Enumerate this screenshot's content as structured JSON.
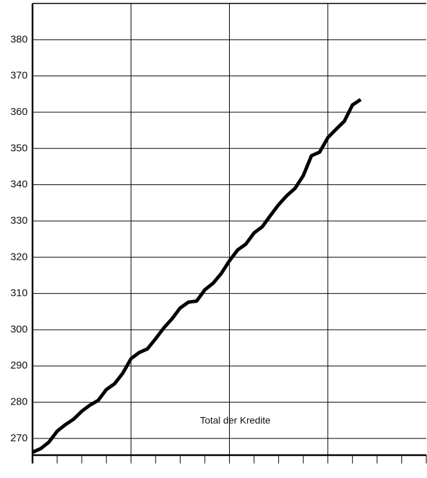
{
  "chart_data": {
    "type": "line",
    "annotation": "Total der Kredite",
    "x": [
      0,
      1,
      2,
      3,
      4,
      5,
      6,
      7,
      8,
      9,
      10,
      11,
      12,
      13,
      14,
      15,
      16,
      17,
      18,
      19,
      20,
      21,
      22,
      23,
      24,
      25,
      26,
      27,
      28,
      29,
      30,
      31,
      32,
      33,
      34,
      35,
      36,
      37,
      38,
      39,
      40
    ],
    "series": [
      {
        "name": "Total der Kredite",
        "color": "#000000",
        "values": [
          266.2,
          267.2,
          269,
          272,
          273.8,
          275.3,
          277.5,
          279.2,
          280.5,
          283.5,
          285.1,
          288,
          292,
          293.7,
          294.7,
          297.5,
          300.5,
          303,
          306,
          307.6,
          307.9,
          311,
          312.8,
          315.5,
          319,
          322,
          323.6,
          326.7,
          328.4,
          331.5,
          334.5,
          337,
          339,
          342.5,
          348,
          349,
          353,
          355.3,
          357.5,
          362,
          363.5
        ]
      }
    ],
    "xlim": [
      0,
      48
    ],
    "xticks": [
      0,
      3,
      6,
      9,
      12,
      15,
      18,
      21,
      24,
      27,
      30,
      33,
      36,
      39,
      42,
      45,
      48
    ],
    "xgridlines": [
      12,
      24,
      36
    ],
    "ylim": [
      265.4,
      390
    ],
    "yticks": [
      270,
      280,
      290,
      300,
      310,
      320,
      330,
      340,
      350,
      360,
      370,
      380
    ],
    "grid": true
  }
}
